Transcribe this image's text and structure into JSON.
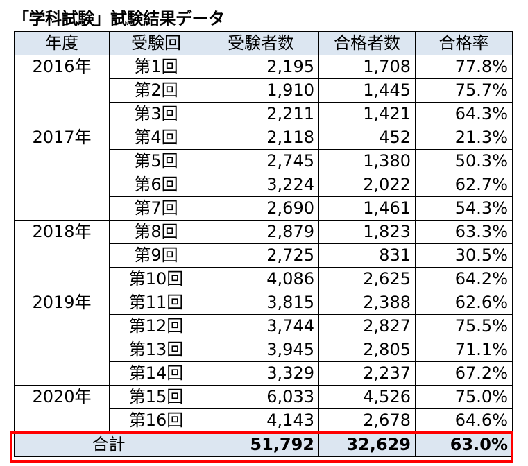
{
  "title": "「学科試験」試験結果データ",
  "table": {
    "headers": [
      "年度",
      "受験回",
      "受験者数",
      "合格者数",
      "合格率"
    ],
    "years": [
      {
        "year": "2016年",
        "rows": [
          {
            "round": "第1回",
            "examinees": "2,195",
            "passers": "1,708",
            "rate": "77.8%"
          },
          {
            "round": "第2回",
            "examinees": "1,910",
            "passers": "1,445",
            "rate": "75.7%"
          },
          {
            "round": "第3回",
            "examinees": "2,211",
            "passers": "1,421",
            "rate": "64.3%"
          }
        ]
      },
      {
        "year": "2017年",
        "rows": [
          {
            "round": "第4回",
            "examinees": "2,118",
            "passers": "452",
            "rate": "21.3%"
          },
          {
            "round": "第5回",
            "examinees": "2,745",
            "passers": "1,380",
            "rate": "50.3%"
          },
          {
            "round": "第6回",
            "examinees": "3,224",
            "passers": "2,022",
            "rate": "62.7%"
          },
          {
            "round": "第7回",
            "examinees": "2,690",
            "passers": "1,461",
            "rate": "54.3%"
          }
        ]
      },
      {
        "year": "2018年",
        "rows": [
          {
            "round": "第8回",
            "examinees": "2,879",
            "passers": "1,823",
            "rate": "63.3%"
          },
          {
            "round": "第9回",
            "examinees": "2,725",
            "passers": "831",
            "rate": "30.5%"
          },
          {
            "round": "第10回",
            "examinees": "4,086",
            "passers": "2,625",
            "rate": "64.2%"
          }
        ]
      },
      {
        "year": "2019年",
        "rows": [
          {
            "round": "第11回",
            "examinees": "3,815",
            "passers": "2,388",
            "rate": "62.6%"
          },
          {
            "round": "第12回",
            "examinees": "3,744",
            "passers": "2,827",
            "rate": "75.5%"
          },
          {
            "round": "第13回",
            "examinees": "3,945",
            "passers": "2,805",
            "rate": "71.1%"
          },
          {
            "round": "第14回",
            "examinees": "3,329",
            "passers": "2,237",
            "rate": "67.2%"
          }
        ]
      },
      {
        "year": "2020年",
        "rows": [
          {
            "round": "第15回",
            "examinees": "6,033",
            "passers": "4,526",
            "rate": "75.0%"
          },
          {
            "round": "第16回",
            "examinees": "4,143",
            "passers": "2,678",
            "rate": "64.6%"
          }
        ]
      }
    ],
    "total": {
      "label": "合計",
      "examinees": "51,792",
      "passers": "32,629",
      "rate": "63.0%"
    }
  },
  "colors": {
    "header_fill": "#dce6f1",
    "highlight_border": "#ff0000"
  }
}
